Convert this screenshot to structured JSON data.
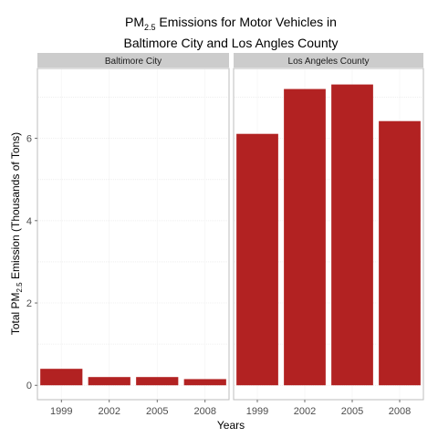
{
  "chart_data": {
    "type": "bar",
    "title_main": "PM",
    "title_sub": "2.5",
    "title_rest": " Emissions for Motor Vehicles in",
    "title_line2": "Baltimore City and Los Angles County",
    "xlabel": "Years",
    "ylabel_main": "Total PM",
    "ylabel_sub": "2.5",
    "ylabel_rest": " Emission (Thousands of Tons)",
    "categories": [
      "1999",
      "2002",
      "2005",
      "2008"
    ],
    "ylim": [
      -0.35,
      7.7
    ],
    "yticks": [
      0,
      2,
      4,
      6
    ],
    "grid": true,
    "bar_color": "#b22222",
    "panels": [
      {
        "name": "Baltimore City",
        "values": [
          0.4,
          0.2,
          0.2,
          0.15
        ]
      },
      {
        "name": "Los Angeles County",
        "values": [
          6.11,
          7.2,
          7.31,
          6.42
        ]
      }
    ]
  }
}
